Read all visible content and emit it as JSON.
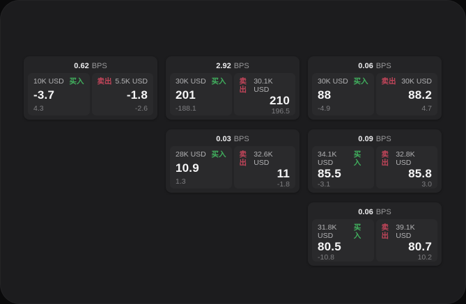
{
  "labels": {
    "bps_unit": "BPS",
    "buy": "买入",
    "sell": "卖出"
  },
  "colors": {
    "buy_green": "#41b05e",
    "sell_red": "#c2455a",
    "panel_bg": "#1c1c1e",
    "card_bg": "#242426",
    "tile_bg": "#2a2a2c"
  },
  "cards": [
    {
      "row": 0,
      "col": 0,
      "spread": "0.62",
      "buy": {
        "amount": "10K USD",
        "price": "-3.7",
        "delta": "4.3"
      },
      "sell": {
        "amount": "5.5K USD",
        "price": "-1.8",
        "delta": "-2.6"
      }
    },
    {
      "row": 0,
      "col": 1,
      "spread": "2.92",
      "buy": {
        "amount": "30K USD",
        "price": "201",
        "delta": "-188.1"
      },
      "sell": {
        "amount": "30.1K USD",
        "price": "210",
        "delta": "196.5"
      }
    },
    {
      "row": 0,
      "col": 2,
      "spread": "0.06",
      "buy": {
        "amount": "30K USD",
        "price": "88",
        "delta": "-4.9"
      },
      "sell": {
        "amount": "30K USD",
        "price": "88.2",
        "delta": "4.7"
      }
    },
    {
      "row": 1,
      "col": 1,
      "spread": "0.03",
      "buy": {
        "amount": "28K USD",
        "price": "10.9",
        "delta": "1.3"
      },
      "sell": {
        "amount": "32.6K USD",
        "price": "11",
        "delta": "-1.8"
      }
    },
    {
      "row": 1,
      "col": 2,
      "spread": "0.09",
      "buy": {
        "amount": "34.1K USD",
        "price": "85.5",
        "delta": "-3.1"
      },
      "sell": {
        "amount": "32.8K USD",
        "price": "85.8",
        "delta": "3.0"
      }
    },
    {
      "row": 2,
      "col": 2,
      "spread": "0.06",
      "buy": {
        "amount": "31.8K USD",
        "price": "80.5",
        "delta": "-10.8"
      },
      "sell": {
        "amount": "39.1K USD",
        "price": "80.7",
        "delta": "10.2"
      }
    }
  ]
}
